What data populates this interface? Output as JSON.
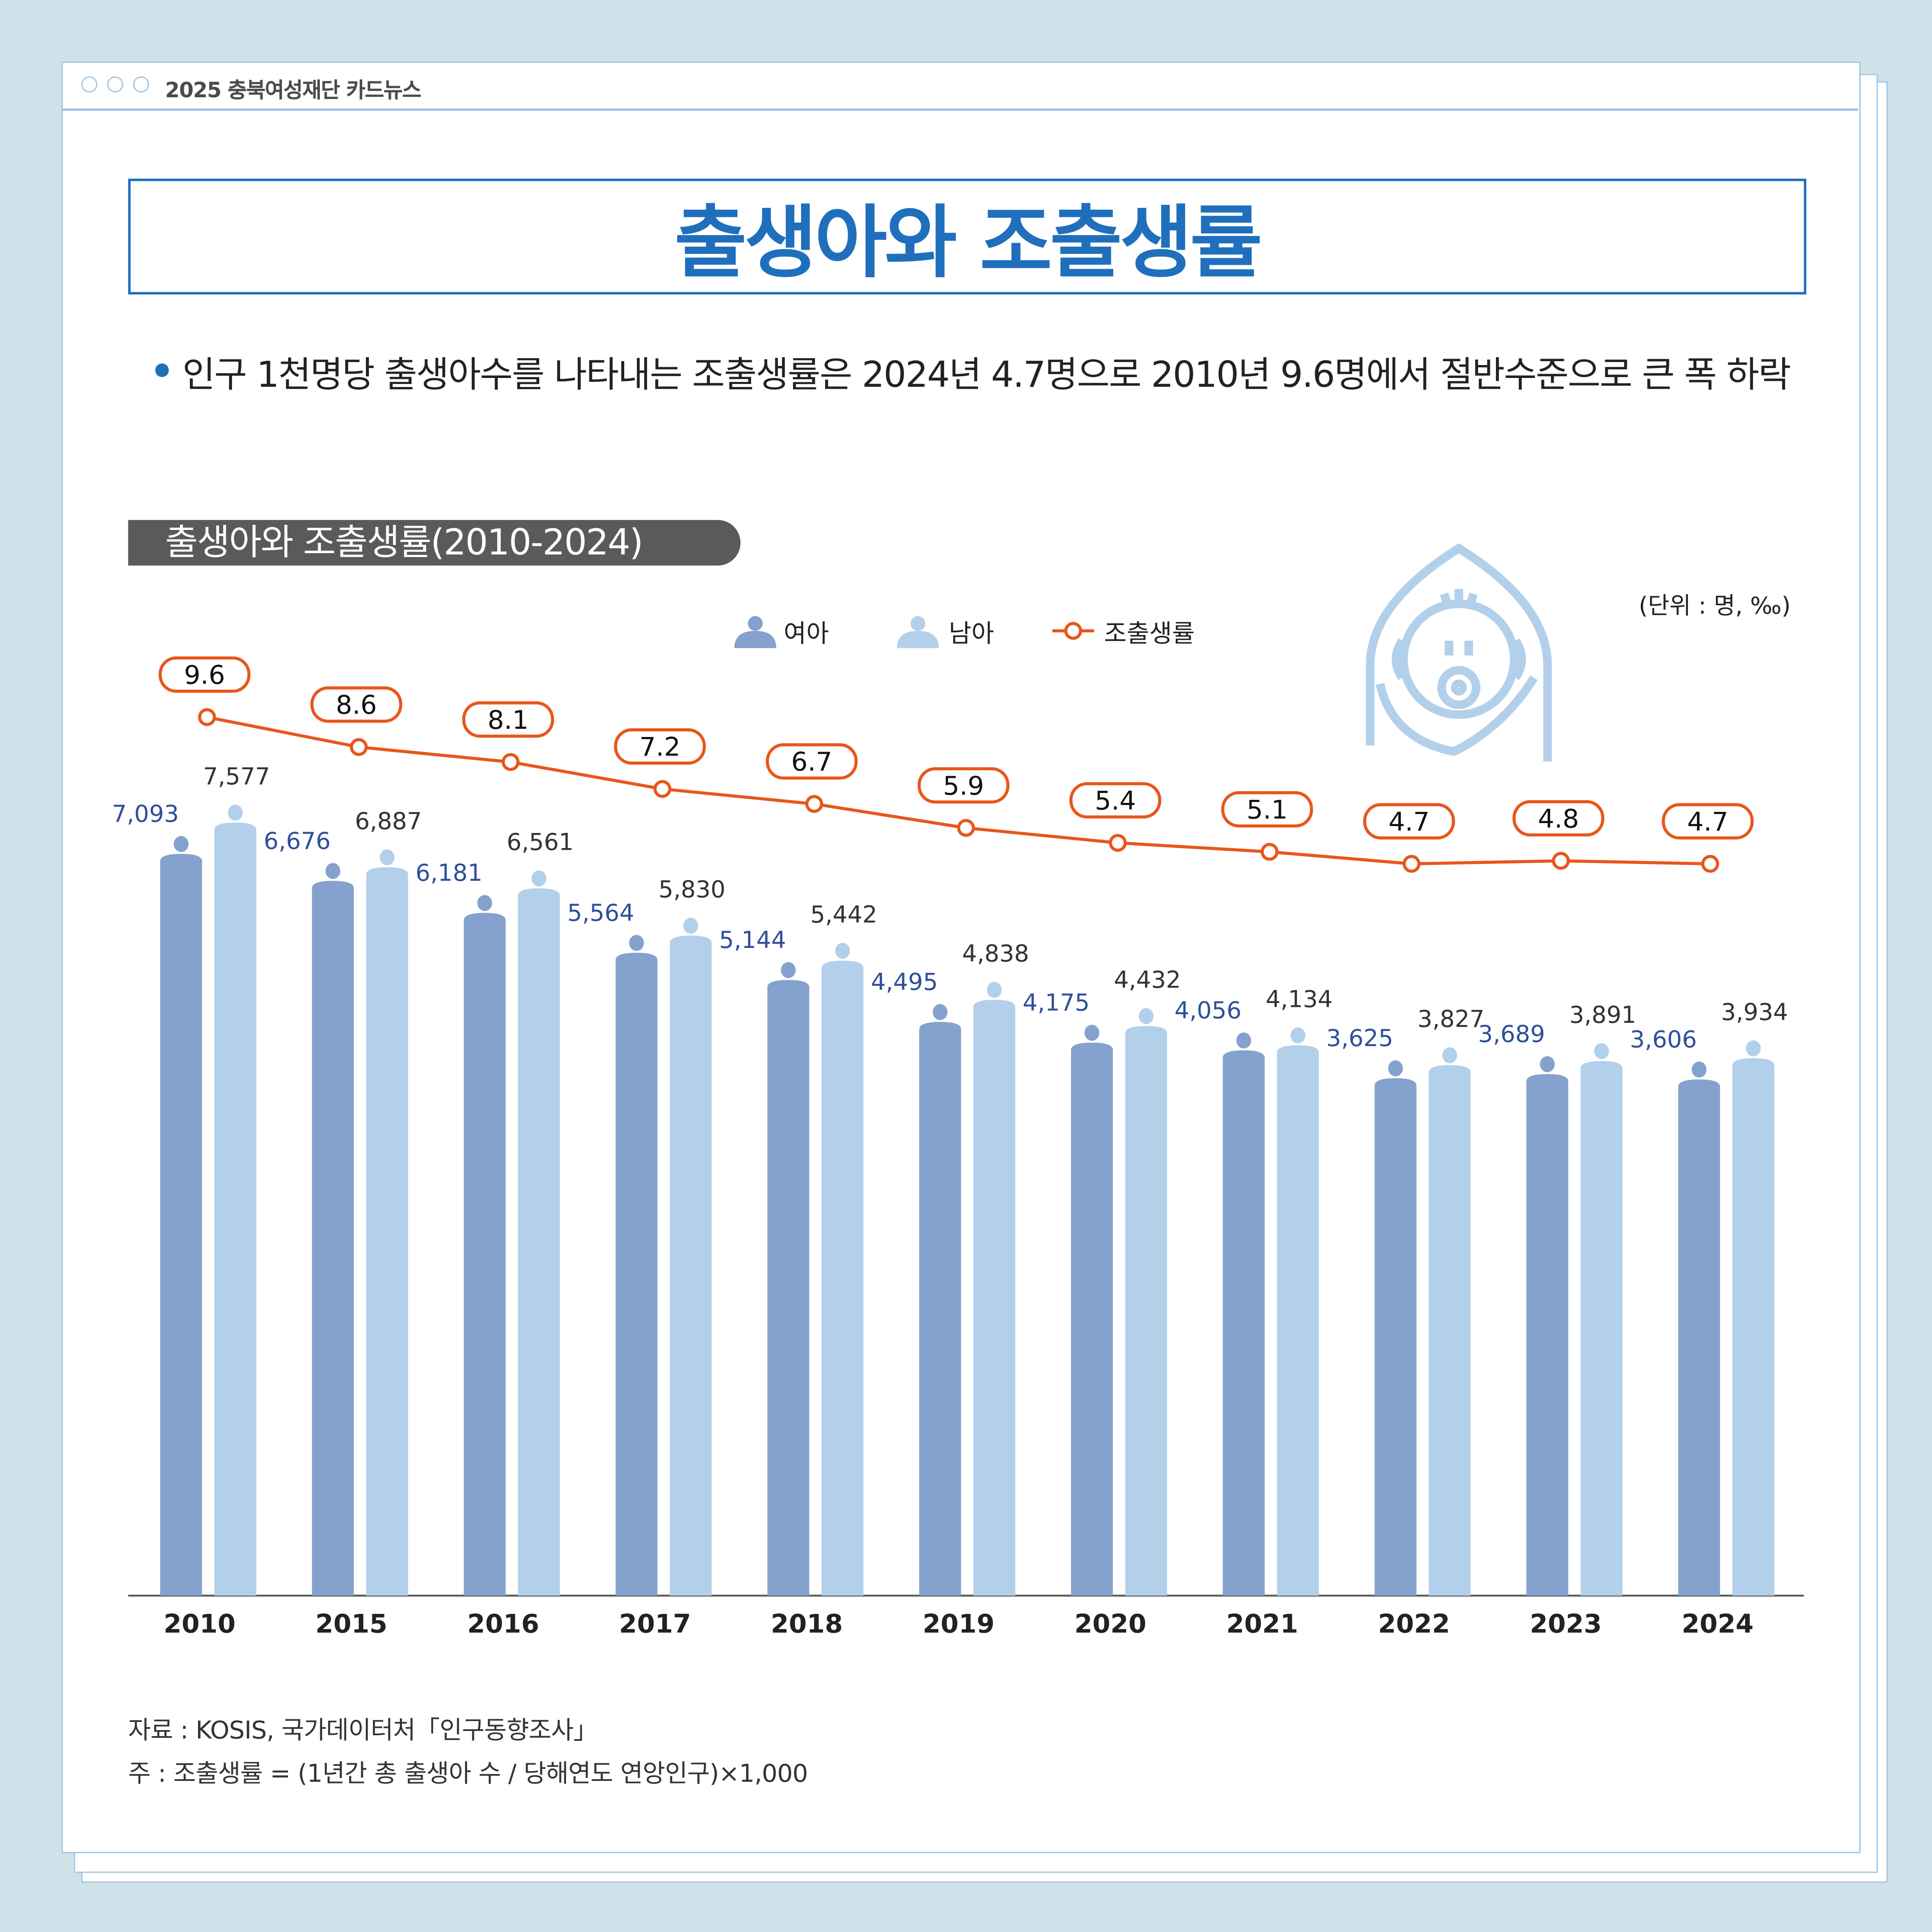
{
  "header": {
    "brand": "2025 충북여성재단 카드뉴스"
  },
  "title": "출생아와 조출생률",
  "description": "인구 1천명당 출생아수를 나타내는 조출생률은 2024년 4.7명으로 2010년 9.6명에서 절반수준으로 큰 폭 하락",
  "chart_title": "출생아와 조출생률(2010-2024)",
  "unit": "(단위 : 명, ‰)",
  "legend": {
    "female": "여아",
    "male": "남아",
    "rate": "조출생률"
  },
  "colors": {
    "female": "#84a2cd",
    "male": "#b3d0eb",
    "rate": "#e8561b",
    "title": "#1f6fbd"
  },
  "chart_data": {
    "type": "bar+line",
    "categories": [
      "2010",
      "2015",
      "2016",
      "2017",
      "2018",
      "2019",
      "2020",
      "2021",
      "2022",
      "2023",
      "2024"
    ],
    "series": [
      {
        "name": "여아",
        "type": "bar",
        "values": [
          7093,
          6676,
          6181,
          5564,
          5144,
          4495,
          4175,
          4056,
          3625,
          3689,
          3606
        ],
        "labels": [
          "7,093",
          "6,676",
          "6,181",
          "5,564",
          "5,144",
          "4,495",
          "4,175",
          "4,056",
          "3,625",
          "3,689",
          "3,606"
        ]
      },
      {
        "name": "남아",
        "type": "bar",
        "values": [
          7577,
          6887,
          6561,
          5830,
          5442,
          4838,
          4432,
          4134,
          3827,
          3891,
          3934
        ],
        "labels": [
          "7,577",
          "6,887",
          "6,561",
          "5,830",
          "5,442",
          "4,838",
          "4,432",
          "4,134",
          "3,827",
          "3,891",
          "3,934"
        ]
      },
      {
        "name": "조출생률",
        "type": "line",
        "values": [
          9.6,
          8.6,
          8.1,
          7.2,
          6.7,
          5.9,
          5.4,
          5.1,
          4.7,
          4.8,
          4.7
        ],
        "labels": [
          "9.6",
          "8.6",
          "8.1",
          "7.2",
          "6.7",
          "5.9",
          "5.4",
          "5.1",
          "4.7",
          "4.8",
          "4.7"
        ]
      }
    ],
    "legend_position": "top-center",
    "grid": false
  },
  "source": "자료 : KOSIS, 국가데이터처「인구동향조사」",
  "note": "주 : 조출생률 = (1년간 총 출생아 수 / 당해연도 연앙인구)×1,000"
}
